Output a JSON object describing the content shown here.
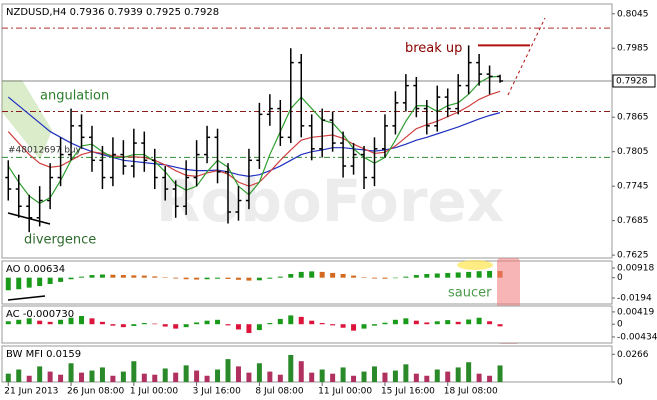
{
  "chart_data": [
    {
      "type": "ohlc",
      "title": "NZDUSD,H4  0.7936 0.7939 0.7925 0.7928",
      "watermark": "RoboForex",
      "xlim": [
        -0.6,
        57.7
      ],
      "ylim": [
        0.762,
        0.8062
      ],
      "yticks": [
        0.8045,
        0.7985,
        0.7865,
        0.7805,
        0.7745,
        0.7685,
        0.7625
      ],
      "open": [
        0.776,
        0.774,
        0.771,
        0.769,
        0.772,
        0.776,
        0.78,
        0.785,
        0.783,
        0.779,
        0.776,
        0.78,
        0.778,
        0.782,
        0.779,
        0.776,
        0.774,
        0.771,
        0.776,
        0.78,
        0.783,
        0.777,
        0.77,
        0.772,
        0.779,
        0.787,
        0.788,
        0.783,
        0.796,
        0.785,
        0.781,
        0.786,
        0.782,
        0.778,
        0.78,
        0.776,
        0.781,
        0.785,
        0.789,
        0.792,
        0.788,
        0.785,
        0.79,
        0.788,
        0.792,
        0.796,
        0.794,
        0.7936
      ],
      "high": [
        0.779,
        0.7765,
        0.773,
        0.7745,
        0.7785,
        0.783,
        0.788,
        0.787,
        0.785,
        0.7815,
        0.783,
        0.7825,
        0.7845,
        0.784,
        0.781,
        0.778,
        0.7755,
        0.779,
        0.7825,
        0.785,
        0.7845,
        0.7785,
        0.7745,
        0.781,
        0.789,
        0.7905,
        0.7895,
        0.7985,
        0.7975,
        0.787,
        0.788,
        0.7875,
        0.784,
        0.782,
        0.7815,
        0.783,
        0.787,
        0.791,
        0.794,
        0.7935,
        0.7895,
        0.792,
        0.7915,
        0.794,
        0.799,
        0.7975,
        0.7955,
        0.7939
      ],
      "low": [
        0.772,
        0.769,
        0.7665,
        0.7675,
        0.7705,
        0.7745,
        0.779,
        0.781,
        0.777,
        0.774,
        0.7745,
        0.7765,
        0.776,
        0.777,
        0.774,
        0.772,
        0.769,
        0.7695,
        0.7745,
        0.7785,
        0.775,
        0.768,
        0.7685,
        0.7705,
        0.7775,
        0.785,
        0.7815,
        0.782,
        0.783,
        0.779,
        0.7795,
        0.7805,
        0.776,
        0.7765,
        0.774,
        0.7745,
        0.7795,
        0.7835,
        0.7875,
        0.7865,
        0.7835,
        0.784,
        0.7865,
        0.787,
        0.7905,
        0.792,
        0.7905,
        0.7925
      ],
      "close": [
        0.774,
        0.771,
        0.769,
        0.772,
        0.776,
        0.78,
        0.785,
        0.783,
        0.779,
        0.776,
        0.78,
        0.778,
        0.782,
        0.779,
        0.776,
        0.774,
        0.771,
        0.776,
        0.78,
        0.783,
        0.777,
        0.77,
        0.772,
        0.779,
        0.787,
        0.788,
        0.783,
        0.796,
        0.785,
        0.781,
        0.786,
        0.782,
        0.778,
        0.78,
        0.776,
        0.781,
        0.785,
        0.789,
        0.792,
        0.788,
        0.785,
        0.79,
        0.788,
        0.792,
        0.796,
        0.794,
        0.7936,
        0.7928
      ],
      "candle_color": "#000000",
      "lines": [
        {
          "color": "#2030c0",
          "values": [
            0.79,
            0.7885,
            0.787,
            0.7855,
            0.784,
            0.783,
            0.782,
            0.7812,
            0.7805,
            0.78,
            0.7795,
            0.779,
            0.7788,
            0.7786,
            0.7784,
            0.7782,
            0.7778,
            0.7774,
            0.7772,
            0.7772,
            0.7773,
            0.777,
            0.7765,
            0.7762,
            0.7765,
            0.7772,
            0.778,
            0.779,
            0.78,
            0.7805,
            0.7808,
            0.7812,
            0.7812,
            0.781,
            0.7808,
            0.7806,
            0.7808,
            0.7812,
            0.7818,
            0.7825,
            0.783,
            0.7836,
            0.7842,
            0.7848,
            0.7855,
            0.7862,
            0.7868,
            0.7873
          ]
        },
        {
          "color": "#d04040",
          "values": [
            0.784,
            0.782,
            0.78,
            0.7785,
            0.7778,
            0.778,
            0.779,
            0.78,
            0.7805,
            0.7802,
            0.7798,
            0.7796,
            0.7796,
            0.7795,
            0.779,
            0.7782,
            0.7772,
            0.7764,
            0.7762,
            0.7768,
            0.7772,
            0.7766,
            0.7752,
            0.7745,
            0.7752,
            0.777,
            0.779,
            0.7808,
            0.7825,
            0.783,
            0.7832,
            0.7834,
            0.7828,
            0.7818,
            0.781,
            0.7802,
            0.7804,
            0.7815,
            0.783,
            0.7845,
            0.7852,
            0.7858,
            0.7866,
            0.7874,
            0.7884,
            0.7896,
            0.7904,
            0.791
          ]
        },
        {
          "color": "#2e9e2e",
          "values": [
            0.778,
            0.7752,
            0.7728,
            0.7715,
            0.7725,
            0.7755,
            0.779,
            0.7815,
            0.7818,
            0.7805,
            0.7795,
            0.7795,
            0.78,
            0.78,
            0.7788,
            0.777,
            0.7748,
            0.7738,
            0.7745,
            0.777,
            0.779,
            0.7778,
            0.7745,
            0.773,
            0.7752,
            0.78,
            0.784,
            0.788,
            0.79,
            0.788,
            0.786,
            0.7855,
            0.7835,
            0.781,
            0.7795,
            0.7785,
            0.7795,
            0.7825,
            0.7858,
            0.7885,
            0.7885,
            0.7875,
            0.7885,
            0.789,
            0.7905,
            0.7925,
            0.7935,
            0.7936
          ]
        }
      ],
      "levels": [
        {
          "value": 0.802,
          "color": "#b03030"
        },
        {
          "value": 0.7875,
          "color": "#8b1a1a"
        },
        {
          "value": 0.7795,
          "color": "#2e8b2e"
        }
      ],
      "current_price": 0.7928,
      "break_up_level": 0.799,
      "break_up_text": "break up",
      "annotations": [
        "angulation",
        "divergence",
        "#48012697 buy"
      ]
    },
    {
      "type": "bar",
      "title": "AO 0.00634",
      "xlim": [
        -0.6,
        57.7
      ],
      "ylim": [
        -0.0251,
        0.0159
      ],
      "yticks": [
        0.00918,
        0,
        -0.0194
      ],
      "up_color": "#1a9a1a",
      "down_color": "#d2691e",
      "annotations": [
        "saucer"
      ],
      "values": [
        -0.012,
        -0.011,
        -0.0095,
        -0.008,
        -0.006,
        -0.004,
        -0.0015,
        0.001,
        0.0025,
        0.003,
        0.0028,
        0.0025,
        0.0022,
        0.002,
        0.0012,
        0.0002,
        -0.0008,
        -0.0015,
        -0.0018,
        -0.0015,
        -0.001,
        -0.0012,
        -0.002,
        -0.0028,
        -0.0025,
        -0.001,
        0.001,
        0.0035,
        0.0055,
        0.006,
        0.0055,
        0.0045,
        0.0035,
        0.002,
        0.0005,
        -0.0008,
        -0.001,
        -0.0005,
        0.001,
        0.0025,
        0.0035,
        0.004,
        0.0045,
        0.005,
        0.0055,
        0.0062,
        0.0064,
        0.00634
      ]
    },
    {
      "type": "bar",
      "title": "AC -0.000730",
      "xlim": [
        -0.6,
        57.7
      ],
      "ylim": [
        -0.0064,
        0.0062
      ],
      "yticks": [
        0.00419,
        0,
        -0.00434
      ],
      "up_color": "#1a9a1a",
      "down_color": "#dc143c",
      "values": [
        0.001,
        0.0015,
        0.002,
        0.0012,
        0.0008,
        0.0015,
        0.0022,
        0.0028,
        0.002,
        0.0008,
        -0.0005,
        -0.001,
        -0.0006,
        0.0004,
        0.0002,
        -0.0008,
        -0.0015,
        -0.001,
        0.0006,
        0.0012,
        0.0015,
        -0.0004,
        -0.0018,
        -0.003,
        -0.002,
        0.0004,
        0.0018,
        0.003,
        0.0025,
        0.0012,
        0.0004,
        -0.0004,
        -0.0012,
        -0.0022,
        -0.0015,
        -0.0005,
        0.0005,
        0.0015,
        0.002,
        0.0012,
        0.0006,
        0.001,
        0.0014,
        0.0008,
        0.0016,
        0.0022,
        0.001,
        -0.00073
      ]
    },
    {
      "type": "bar",
      "title": "BW MFI 0.0159",
      "xlim": [
        -0.6,
        57.7
      ],
      "ylim": [
        0,
        0.0346
      ],
      "yticks": [
        0.0266,
        0
      ],
      "up_color": "#2a8a2a",
      "down_color": "#b03060",
      "xticks": [
        {
          "value": 0,
          "label": "21 Jun 2013"
        },
        {
          "value": 6,
          "label": "26 Jun 08:00"
        },
        {
          "value": 12,
          "label": "1 Jul 00:00"
        },
        {
          "value": 18,
          "label": "3 Jul 16:00"
        },
        {
          "value": 24,
          "label": "8 Jul 08:00"
        },
        {
          "value": 30,
          "label": "11 Jul 00:00"
        },
        {
          "value": 36,
          "label": "15 Jul 16:00"
        },
        {
          "value": 42,
          "label": "18 Jul 08:00"
        }
      ],
      "values": [
        0.008,
        0.012,
        0.006,
        0.015,
        0.01,
        0.007,
        0.018,
        0.009,
        0.011,
        0.014,
        0.006,
        0.01,
        0.02,
        0.008,
        0.007,
        0.013,
        0.009,
        0.016,
        0.011,
        0.006,
        0.012,
        0.022,
        0.015,
        0.009,
        0.018,
        0.01,
        0.007,
        0.026,
        0.02,
        0.009,
        0.012,
        0.008,
        0.014,
        0.006,
        0.01,
        0.015,
        0.009,
        0.011,
        0.017,
        0.008,
        0.006,
        0.012,
        0.01,
        0.014,
        0.019,
        0.008,
        0.006,
        0.0159
      ]
    }
  ]
}
